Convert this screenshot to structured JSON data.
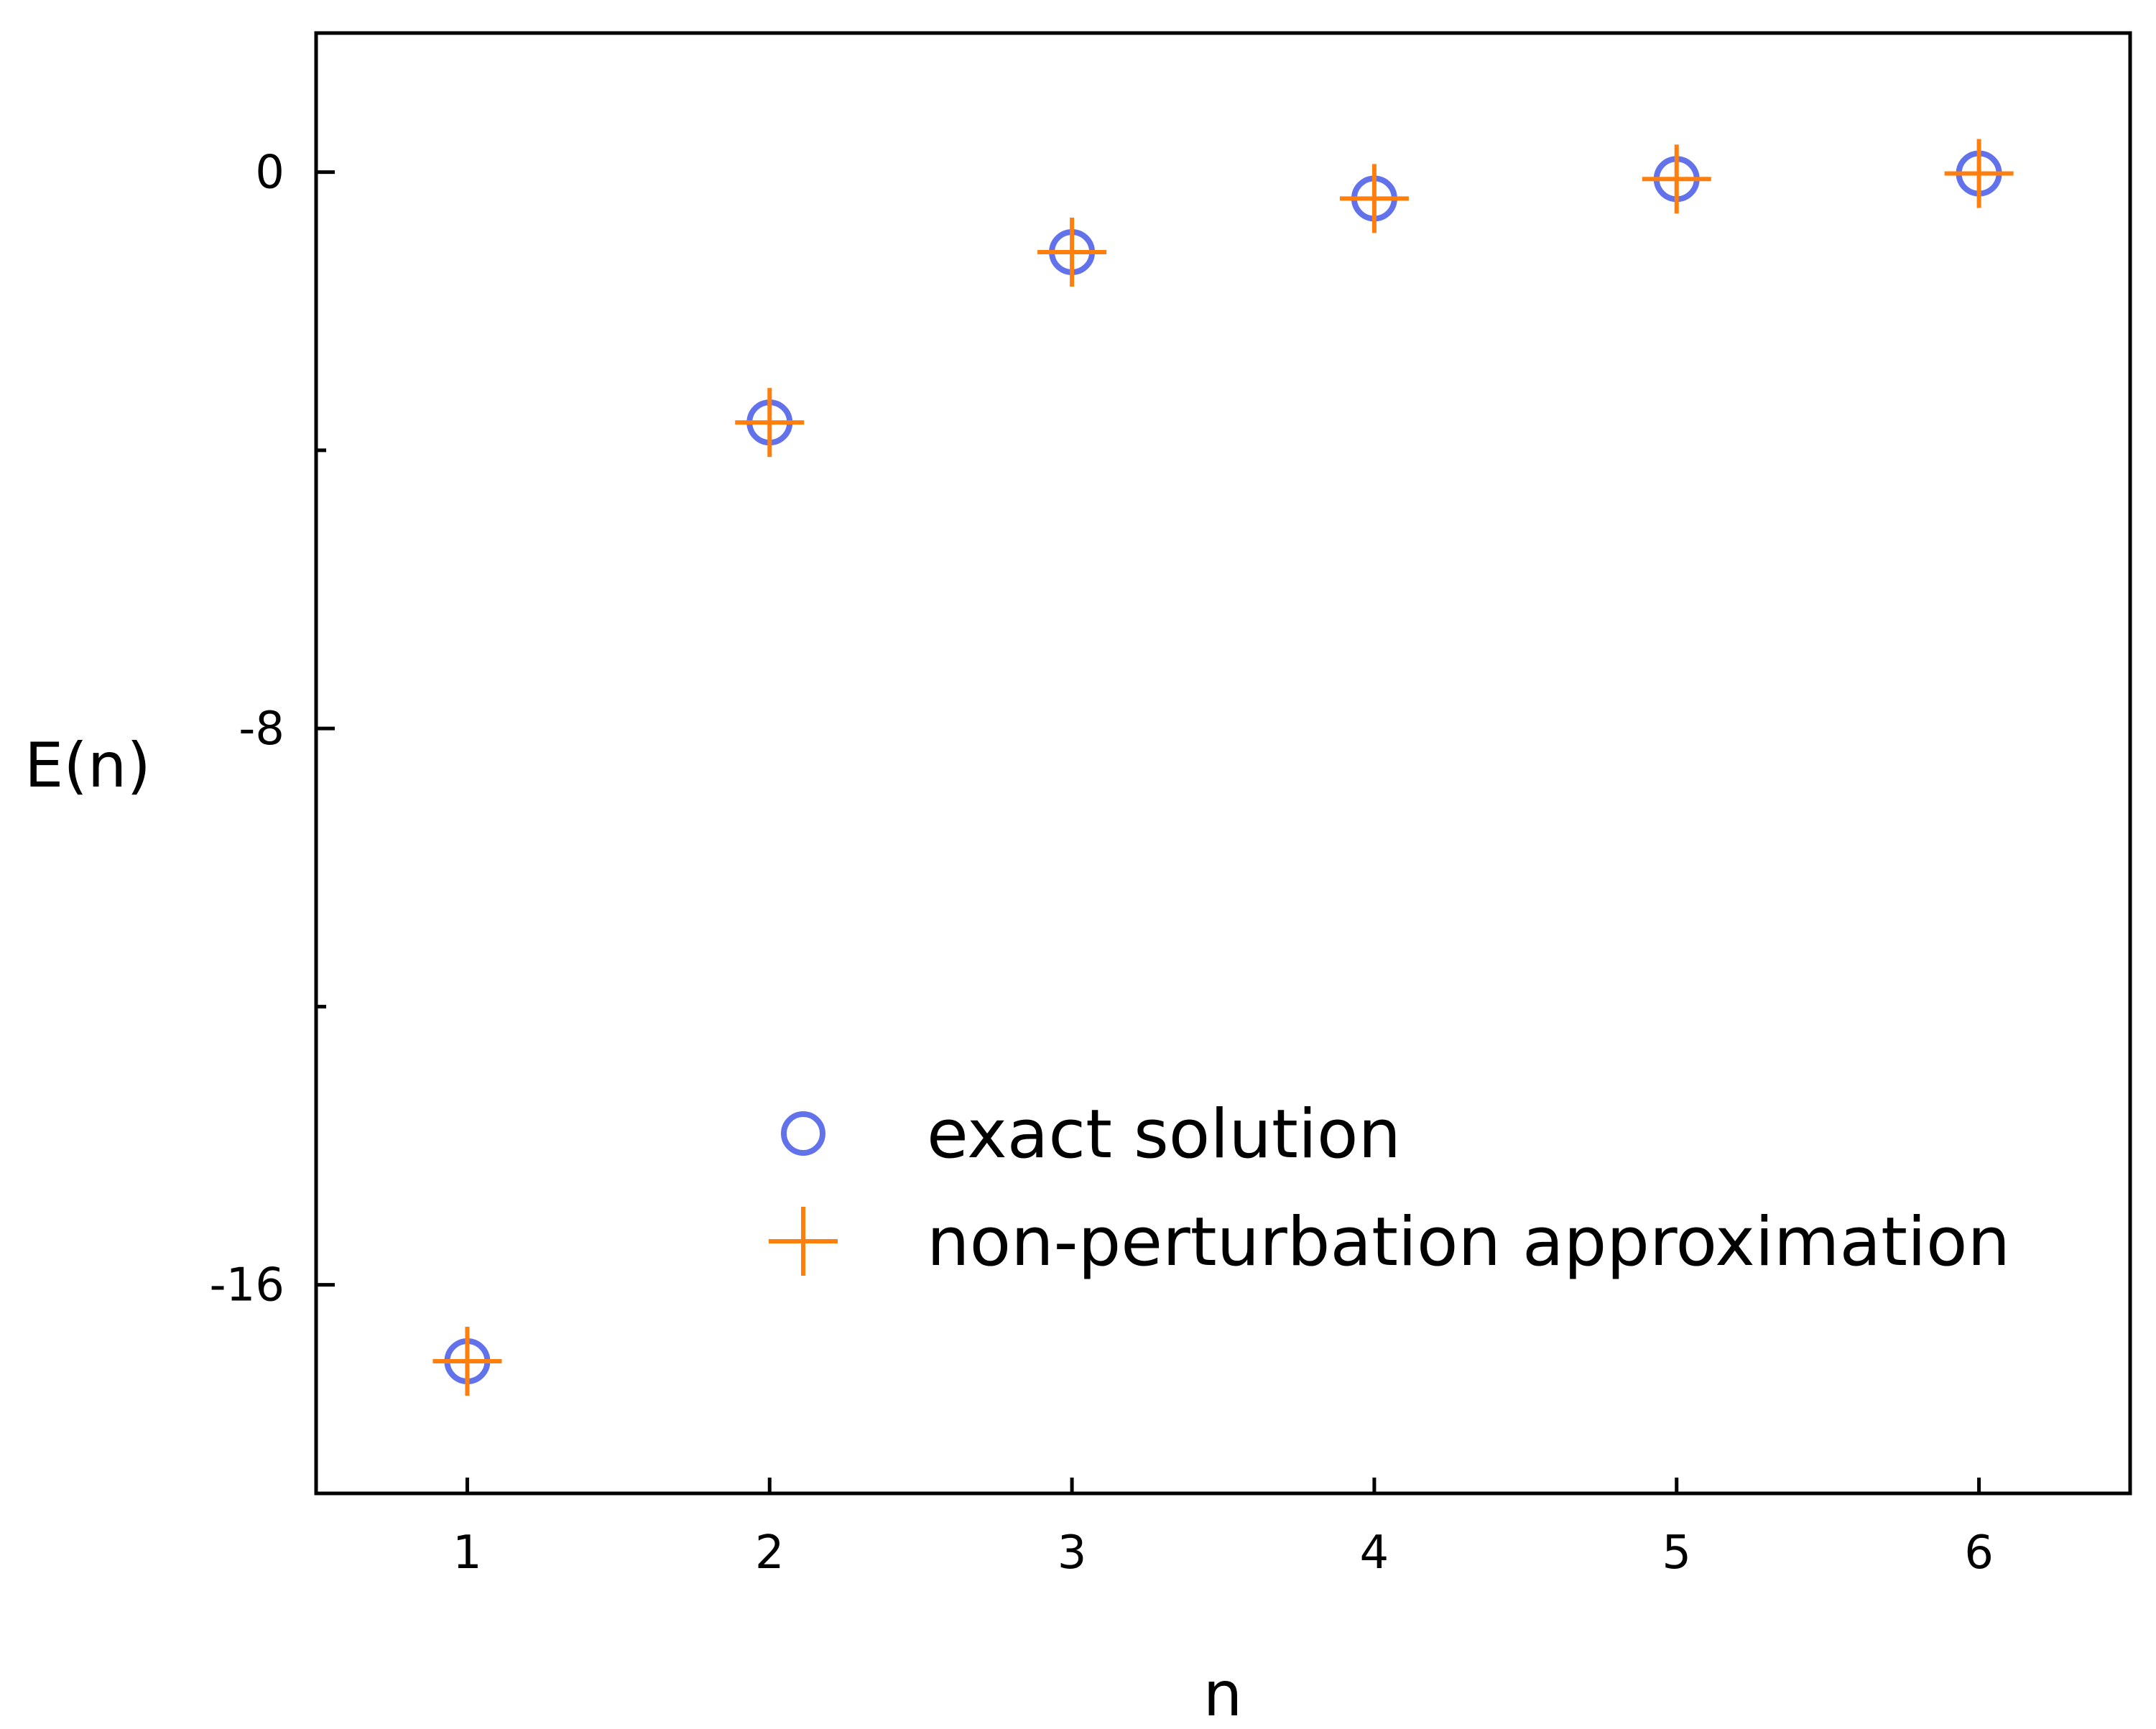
{
  "chart_data": {
    "type": "scatter",
    "xlabel": "n",
    "ylabel": "E(n)",
    "xlim": [
      0.5,
      6.5
    ],
    "ylim": [
      -19,
      2
    ],
    "x_ticks": [
      1,
      2,
      3,
      4,
      5,
      6
    ],
    "x_tick_labels": [
      "1",
      "2",
      "3",
      "4",
      "5",
      "6"
    ],
    "y_major_ticks": [
      0,
      -8,
      -16
    ],
    "y_tick_labels": [
      "0",
      "-8",
      "-16"
    ],
    "y_minor_ticks": [
      -4,
      -12
    ],
    "grid": false,
    "legend_position": "bottom-right",
    "series": [
      {
        "name": "exact solution",
        "marker": "circle",
        "color": "#6272ea",
        "x": [
          1,
          2,
          3,
          4,
          5,
          6
        ],
        "y": [
          -17.1,
          -3.6,
          -1.15,
          -0.38,
          -0.1,
          -0.02
        ]
      },
      {
        "name": "non-perturbation approximation",
        "marker": "plus",
        "color": "#ff7f0e",
        "x": [
          1,
          2,
          3,
          4,
          5,
          6
        ],
        "y": [
          -17.1,
          -3.6,
          -1.15,
          -0.38,
          -0.1,
          -0.02
        ]
      }
    ]
  }
}
